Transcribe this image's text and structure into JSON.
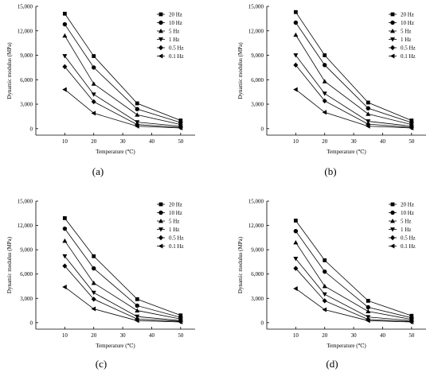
{
  "chart_data": [
    {
      "type": "line",
      "label": "(a)",
      "xlabel": "Temperature (℃)",
      "ylabel": "Dynamic modulus (MPa)",
      "x": [
        10,
        20,
        35,
        50
      ],
      "xlim": [
        0,
        55
      ],
      "xticks": [
        10,
        20,
        30,
        40,
        50
      ],
      "ylim": [
        -800,
        15000
      ],
      "yticks": [
        0,
        3000,
        6000,
        9000,
        12000,
        15000
      ],
      "ytick_labels": [
        "0",
        "3,000",
        "6,000",
        "9,000",
        "12,000",
        "15,000"
      ],
      "legend_position": "top-right",
      "series": [
        {
          "name": "20 Hz",
          "marker": "square",
          "values": [
            14100,
            8900,
            3100,
            1000
          ]
        },
        {
          "name": "10 Hz",
          "marker": "circle",
          "values": [
            12800,
            7500,
            2400,
            750
          ]
        },
        {
          "name": "5 Hz",
          "marker": "triangle-up",
          "values": [
            11400,
            5500,
            1700,
            500
          ]
        },
        {
          "name": "1 Hz",
          "marker": "triangle-down",
          "values": [
            8900,
            4200,
            800,
            300
          ]
        },
        {
          "name": "0.5 Hz",
          "marker": "diamond",
          "values": [
            7600,
            3300,
            500,
            150
          ]
        },
        {
          "name": "0.1 Hz",
          "marker": "triangle-left",
          "values": [
            4800,
            1900,
            300,
            80
          ]
        }
      ]
    },
    {
      "type": "line",
      "label": "(b)",
      "xlabel": "Temperature (℃)",
      "ylabel": "Dynamic modulus (MPa)",
      "x": [
        10,
        20,
        35,
        50
      ],
      "xlim": [
        0,
        55
      ],
      "xticks": [
        10,
        20,
        30,
        40,
        50
      ],
      "ylim": [
        -800,
        15000
      ],
      "yticks": [
        0,
        3000,
        6000,
        9000,
        12000,
        15000
      ],
      "ytick_labels": [
        "0",
        "3,000",
        "6,000",
        "9,000",
        "12,000",
        "15,000"
      ],
      "legend_position": "top-right",
      "series": [
        {
          "name": "20 Hz",
          "marker": "square",
          "values": [
            14300,
            9000,
            3200,
            1000
          ]
        },
        {
          "name": "10 Hz",
          "marker": "circle",
          "values": [
            13000,
            7800,
            2500,
            750
          ]
        },
        {
          "name": "5 Hz",
          "marker": "triangle-up",
          "values": [
            11500,
            5800,
            1800,
            500
          ]
        },
        {
          "name": "1 Hz",
          "marker": "triangle-down",
          "values": [
            9000,
            4300,
            900,
            300
          ]
        },
        {
          "name": "0.5 Hz",
          "marker": "diamond",
          "values": [
            7800,
            3400,
            550,
            150
          ]
        },
        {
          "name": "0.1 Hz",
          "marker": "triangle-left",
          "values": [
            4800,
            2000,
            300,
            80
          ]
        }
      ]
    },
    {
      "type": "line",
      "label": "(c)",
      "xlabel": "Temperature (℃)",
      "ylabel": "Dynamic modulus (MPa)",
      "x": [
        10,
        20,
        35,
        50
      ],
      "xlim": [
        0,
        55
      ],
      "xticks": [
        10,
        20,
        30,
        40,
        50
      ],
      "ylim": [
        -800,
        15000
      ],
      "yticks": [
        0,
        3000,
        6000,
        9000,
        12000,
        15000
      ],
      "ytick_labels": [
        "0",
        "3,000",
        "6,000",
        "9,000",
        "12,000",
        "15,000"
      ],
      "legend_position": "top-right",
      "series": [
        {
          "name": "20 Hz",
          "marker": "square",
          "values": [
            12900,
            8200,
            2900,
            900
          ]
        },
        {
          "name": "10 Hz",
          "marker": "circle",
          "values": [
            11600,
            6700,
            2100,
            650
          ]
        },
        {
          "name": "5 Hz",
          "marker": "triangle-up",
          "values": [
            10100,
            4900,
            1500,
            450
          ]
        },
        {
          "name": "1 Hz",
          "marker": "triangle-down",
          "values": [
            8200,
            3700,
            750,
            250
          ]
        },
        {
          "name": "0.5 Hz",
          "marker": "diamond",
          "values": [
            7000,
            2900,
            450,
            150
          ]
        },
        {
          "name": "0.1 Hz",
          "marker": "triangle-left",
          "values": [
            4400,
            1700,
            250,
            80
          ]
        }
      ]
    },
    {
      "type": "line",
      "label": "(d)",
      "xlabel": "Temperature (℃)",
      "ylabel": "Dynamic modulus (MPa)",
      "x": [
        10,
        20,
        35,
        50
      ],
      "xlim": [
        0,
        55
      ],
      "xticks": [
        10,
        20,
        30,
        40,
        50
      ],
      "ylim": [
        -800,
        15000
      ],
      "yticks": [
        0,
        3000,
        6000,
        9000,
        12000,
        15000
      ],
      "ytick_labels": [
        "0",
        "3,000",
        "6,000",
        "9,000",
        "12,000",
        "15,000"
      ],
      "legend_position": "top-right",
      "series": [
        {
          "name": "20 Hz",
          "marker": "square",
          "values": [
            12600,
            7700,
            2700,
            850
          ]
        },
        {
          "name": "10 Hz",
          "marker": "circle",
          "values": [
            11300,
            6300,
            1900,
            600
          ]
        },
        {
          "name": "5 Hz",
          "marker": "triangle-up",
          "values": [
            9900,
            4500,
            1400,
            400
          ]
        },
        {
          "name": "1 Hz",
          "marker": "triangle-down",
          "values": [
            7900,
            3500,
            700,
            250
          ]
        },
        {
          "name": "0.5 Hz",
          "marker": "diamond",
          "values": [
            6700,
            2700,
            400,
            130
          ]
        },
        {
          "name": "0.1 Hz",
          "marker": "triangle-left",
          "values": [
            4200,
            1600,
            250,
            80
          ]
        }
      ]
    }
  ]
}
